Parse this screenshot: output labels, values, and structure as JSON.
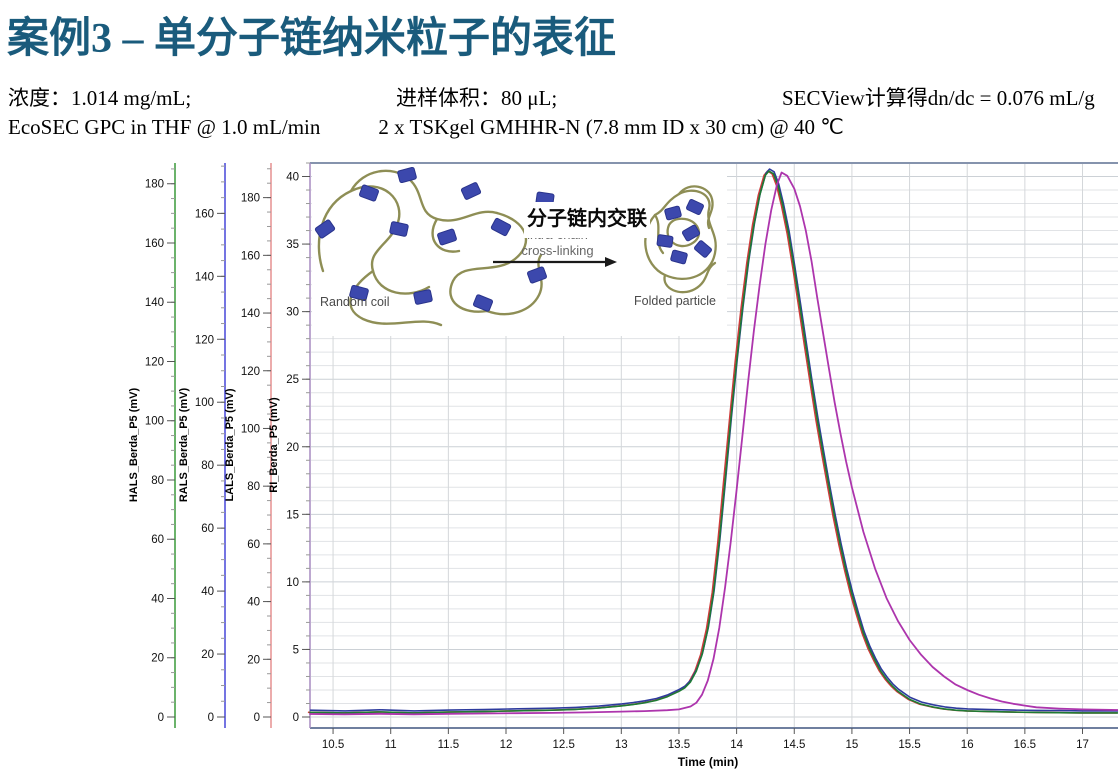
{
  "header": {
    "title": "案例3 – 单分子链纳米粒子的表征",
    "concentration": "浓度：1.014 mg/mL;",
    "injection_volume": "进样体积：80 μL;",
    "secview": "SECView计算得dn/dc = 0.076 mL/g",
    "conditions_left": "EcoSEC GPC in THF @ 1.0 mL/min",
    "conditions_right": "2 x TSKgel GMHHR-N (7.8 mm ID x 30 cm) @ 40 ℃"
  },
  "inset": {
    "random_coil_label": "Random coil",
    "folded_particle_label": "Folded particle",
    "arrow_label_zh": "分子链内交联",
    "arrow_label_en_line1": "intra-chain",
    "arrow_label_en_line2": "cross-linking"
  },
  "colors": {
    "title": "#1a5b7c",
    "hals_curve": "#1e7b34",
    "rals_curve": "#2e3b9e",
    "lals_curve": "#cf3a3a",
    "ri_curve": "#ad35ad",
    "grid_major": "#ccd1d6",
    "grid_minor": "#e1e3e6",
    "plot_border": "#8593ad",
    "chain_olive": "#8e8e55",
    "block_blue": "#3c48ad"
  },
  "chart_data": {
    "type": "line",
    "title": "",
    "xlabel": "Time (min)",
    "x_axis": {
      "label": "Time (min)",
      "range": [
        10.3,
        17.31
      ],
      "ticks": [
        10.5,
        11,
        11.5,
        12,
        12.5,
        13,
        13.5,
        14,
        14.5,
        15,
        15.5,
        16,
        16.5,
        17
      ]
    },
    "y_axes": [
      {
        "label": "HALS_Berda_P5 (mV)",
        "line_color": "#3a9a3a",
        "tick_min": 0,
        "tick_max": 180,
        "tick_step": 20,
        "minor_step": 5,
        "axis_max_mV": 187
      },
      {
        "label": "RALS_Berda_P5 (mV)",
        "line_color": "#4747d8",
        "tick_min": 0,
        "tick_max": 160,
        "tick_step": 20,
        "minor_step": 5,
        "axis_max_mV": 176
      },
      {
        "label": "LALS_Berda_P5 (mV)",
        "line_color": "#e59090",
        "tick_min": 0,
        "tick_max": 180,
        "tick_step": 20,
        "minor_step": 5,
        "axis_max_mV": 192
      },
      {
        "label": "RI_Berda_P5 (mV)",
        "line_color": "#a78bc0",
        "tick_min": 0,
        "tick_max": 40,
        "tick_step": 5,
        "minor_step": 1,
        "axis_max_mV": 41
      }
    ],
    "grid": {
      "horizontal_step_RI_mV": 1,
      "vertical_step_min": 0.5,
      "grid_on": true
    },
    "legend": "none",
    "series": [
      {
        "name": "LALS_Berda_P5",
        "detector": "LALS",
        "color": "#cf3a3a",
        "axis": 2,
        "shape": "ls",
        "t_shift": -0.012,
        "d_offset": 0,
        "peak_time_min": 14.27,
        "peak_height_RI_scale_mV": 40.4
      },
      {
        "name": "RALS_Berda_P5",
        "detector": "RALS",
        "color": "#2e3b9e",
        "axis": 1,
        "shape": "ls",
        "t_shift": 0.005,
        "d_offset": 0.15,
        "peak_time_min": 14.27,
        "peak_height_RI_scale_mV": 40.5
      },
      {
        "name": "HALS_Berda_P5",
        "detector": "HALS",
        "color": "#1e7b34",
        "axis": 0,
        "shape": "ls",
        "t_shift": 0,
        "d_offset": 0,
        "peak_time_min": 14.27,
        "peak_height_RI_scale_mV": 40.4
      },
      {
        "name": "RI_Berda_P5",
        "detector": "RI",
        "color": "#ad35ad",
        "axis": 3,
        "shape": "ri",
        "t_shift": 0,
        "d_offset": 0,
        "peak_time_min": 14.39,
        "peak_height_RI_scale_mV": 40.3
      }
    ],
    "shapes_note": "sample points [time_min, displayed_height_in_RI_axis_mV]; each series is rescaled to its own axis (axis_max_mV) so all detectors overlay at the same displayed height",
    "shapes": {
      "ls": [
        [
          10.3,
          0.35
        ],
        [
          10.6,
          0.3
        ],
        [
          10.9,
          0.38
        ],
        [
          11.2,
          0.3
        ],
        [
          11.5,
          0.36
        ],
        [
          11.8,
          0.4
        ],
        [
          12.1,
          0.46
        ],
        [
          12.4,
          0.5
        ],
        [
          12.6,
          0.56
        ],
        [
          12.8,
          0.66
        ],
        [
          13,
          0.82
        ],
        [
          13.1,
          0.92
        ],
        [
          13.2,
          1.05
        ],
        [
          13.3,
          1.22
        ],
        [
          13.4,
          1.5
        ],
        [
          13.5,
          1.9
        ],
        [
          13.55,
          2.15
        ],
        [
          13.6,
          2.6
        ],
        [
          13.65,
          3.4
        ],
        [
          13.7,
          4.6
        ],
        [
          13.75,
          6.5
        ],
        [
          13.8,
          9.2
        ],
        [
          13.85,
          13
        ],
        [
          13.9,
          17.5
        ],
        [
          13.95,
          22
        ],
        [
          14,
          26.3
        ],
        [
          14.05,
          30.2
        ],
        [
          14.1,
          33.6
        ],
        [
          14.15,
          36.4
        ],
        [
          14.2,
          38.6
        ],
        [
          14.25,
          40.1
        ],
        [
          14.28,
          40.4
        ],
        [
          14.32,
          40.2
        ],
        [
          14.36,
          39.3
        ],
        [
          14.4,
          37.9
        ],
        [
          14.45,
          35.8
        ],
        [
          14.5,
          33.2
        ],
        [
          14.55,
          30.4
        ],
        [
          14.6,
          27.5
        ],
        [
          14.65,
          24.7
        ],
        [
          14.7,
          22
        ],
        [
          14.75,
          19.5
        ],
        [
          14.8,
          17.1
        ],
        [
          14.85,
          14.8
        ],
        [
          14.9,
          12.7
        ],
        [
          14.95,
          10.8
        ],
        [
          15,
          9.1
        ],
        [
          15.05,
          7.6
        ],
        [
          15.1,
          6.2
        ],
        [
          15.15,
          5.1
        ],
        [
          15.2,
          4.2
        ],
        [
          15.25,
          3.4
        ],
        [
          15.3,
          2.8
        ],
        [
          15.35,
          2.3
        ],
        [
          15.4,
          1.9
        ],
        [
          15.5,
          1.3
        ],
        [
          15.6,
          0.95
        ],
        [
          15.7,
          0.75
        ],
        [
          15.8,
          0.6
        ],
        [
          15.9,
          0.5
        ],
        [
          16,
          0.45
        ],
        [
          16.2,
          0.4
        ],
        [
          16.4,
          0.36
        ],
        [
          16.6,
          0.34
        ],
        [
          16.8,
          0.32
        ],
        [
          17,
          0.3
        ],
        [
          17.31,
          0.3
        ]
      ],
      "ri": [
        [
          10.3,
          0.22
        ],
        [
          10.6,
          0.2
        ],
        [
          10.9,
          0.24
        ],
        [
          11.2,
          0.2
        ],
        [
          11.5,
          0.24
        ],
        [
          11.8,
          0.26
        ],
        [
          12.1,
          0.28
        ],
        [
          12.4,
          0.3
        ],
        [
          12.7,
          0.34
        ],
        [
          13,
          0.4
        ],
        [
          13.2,
          0.44
        ],
        [
          13.4,
          0.5
        ],
        [
          13.5,
          0.56
        ],
        [
          13.6,
          0.78
        ],
        [
          13.65,
          1.05
        ],
        [
          13.7,
          1.65
        ],
        [
          13.75,
          2.7
        ],
        [
          13.8,
          4.3
        ],
        [
          13.85,
          6.6
        ],
        [
          13.9,
          9.6
        ],
        [
          13.95,
          13
        ],
        [
          14,
          16.8
        ],
        [
          14.05,
          20.8
        ],
        [
          14.1,
          24.8
        ],
        [
          14.15,
          28.6
        ],
        [
          14.2,
          32
        ],
        [
          14.25,
          35
        ],
        [
          14.3,
          37.5
        ],
        [
          14.35,
          39.4
        ],
        [
          14.39,
          40.3
        ],
        [
          14.44,
          40.05
        ],
        [
          14.5,
          39.1
        ],
        [
          14.55,
          37.8
        ],
        [
          14.6,
          36
        ],
        [
          14.65,
          33.7
        ],
        [
          14.7,
          31
        ],
        [
          14.75,
          28.4
        ],
        [
          14.8,
          25.8
        ],
        [
          14.85,
          23.3
        ],
        [
          14.9,
          21
        ],
        [
          14.95,
          18.9
        ],
        [
          15,
          17
        ],
        [
          15.1,
          13.7
        ],
        [
          15.2,
          11
        ],
        [
          15.3,
          8.8
        ],
        [
          15.4,
          7.1
        ],
        [
          15.5,
          5.7
        ],
        [
          15.6,
          4.6
        ],
        [
          15.7,
          3.7
        ],
        [
          15.8,
          3
        ],
        [
          15.9,
          2.4
        ],
        [
          16,
          2
        ],
        [
          16.1,
          1.65
        ],
        [
          16.2,
          1.38
        ],
        [
          16.3,
          1.15
        ],
        [
          16.4,
          0.98
        ],
        [
          16.5,
          0.84
        ],
        [
          16.6,
          0.72
        ],
        [
          16.8,
          0.62
        ],
        [
          17,
          0.56
        ],
        [
          17.31,
          0.52
        ]
      ]
    }
  }
}
